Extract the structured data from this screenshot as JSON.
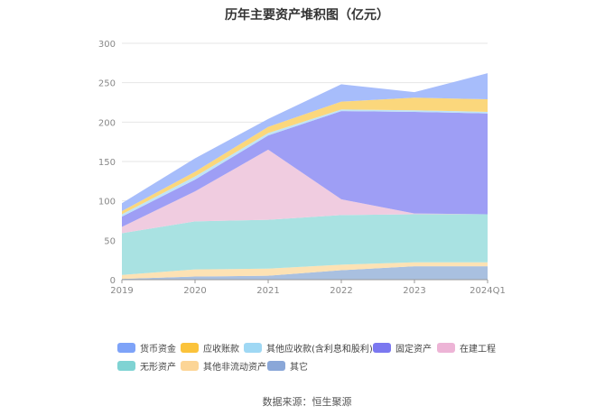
{
  "title": "历年主要资产堆积图（亿元）",
  "source": "数据来源：恒生聚源",
  "colors": {
    "货币资金": "#a7bdfb",
    "应收账款": "#fbd77c",
    "其他应收款(含利息和股利)": "#bfe3f7",
    "固定资产": "#9e9ef5",
    "在建工程": "#f0cce0",
    "无形资产": "#a9e2e2",
    "其他非流动资产": "#fde2b4",
    "其它": "#a9c0e0"
  },
  "legend_colors": {
    "货币资金": "#7ea3f8",
    "应收账款": "#fbc33b",
    "其他应收款(含利息和股利)": "#9fd8f4",
    "固定资产": "#7b78f0",
    "在建工程": "#edb4d6",
    "无形资产": "#7fd3d3",
    "其他非流动资产": "#fcd596",
    "其它": "#8aa7d8"
  },
  "chart_data": {
    "type": "area",
    "stacked": true,
    "title": "历年主要资产堆积图（亿元）",
    "categories": [
      "2019",
      "2020",
      "2021",
      "2022",
      "2023",
      "2024Q1"
    ],
    "ylim": [
      0,
      300
    ],
    "yticks": [
      0,
      50,
      100,
      150,
      200,
      250,
      300
    ],
    "grid": true,
    "legend_position": "bottom",
    "series": [
      {
        "name": "其它",
        "values": [
          1,
          4,
          5,
          12,
          17,
          17
        ]
      },
      {
        "name": "其他非流动资产",
        "values": [
          5,
          9,
          9,
          7,
          5,
          5
        ]
      },
      {
        "name": "无形资产",
        "values": [
          53,
          61,
          62,
          63,
          61,
          61
        ]
      },
      {
        "name": "在建工程",
        "values": [
          8,
          38,
          89,
          20,
          1,
          0
        ]
      },
      {
        "name": "固定资产",
        "values": [
          13,
          15,
          18,
          112,
          129,
          128
        ]
      },
      {
        "name": "其他应收款(含利息和股利)",
        "values": [
          3,
          4,
          3,
          2,
          2,
          2
        ]
      },
      {
        "name": "应收账款",
        "values": [
          4,
          6,
          8,
          10,
          16,
          16
        ]
      },
      {
        "name": "货币资金",
        "values": [
          10,
          17,
          10,
          22,
          7,
          33
        ]
      }
    ]
  },
  "legend": [
    "货币资金",
    "应收账款",
    "其他应收款(含利息和股利)",
    "固定资产",
    "在建工程",
    "无形资产",
    "其他非流动资产",
    "其它"
  ]
}
